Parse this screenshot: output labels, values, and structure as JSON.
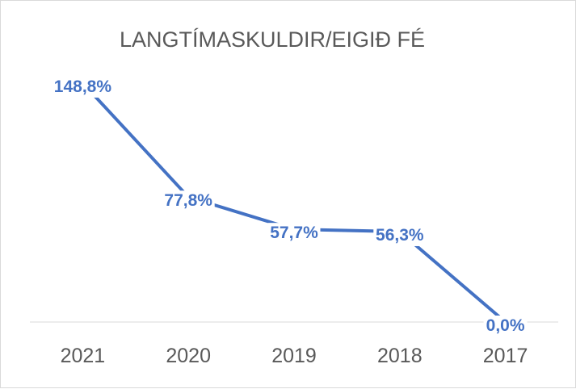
{
  "chart_data": {
    "type": "line",
    "title": "LANGTÍMASKULDIR/EIGIÐ FÉ",
    "xlabel": "",
    "ylabel": "",
    "categories": [
      "2021",
      "2020",
      "2019",
      "2018",
      "2017"
    ],
    "series": [
      {
        "values": [
          148.8,
          77.8,
          57.7,
          56.3,
          0.0
        ],
        "labels": [
          "148,8%",
          "77,8%",
          "57,7%",
          "56,3%",
          "0,0%"
        ]
      }
    ],
    "ylim": [
      0,
      160
    ],
    "grid": false,
    "legend": "none",
    "colors": {
      "line": "#4472C4",
      "label": "#4472C4",
      "axis": "#d9d9d9",
      "text": "#595959"
    }
  }
}
